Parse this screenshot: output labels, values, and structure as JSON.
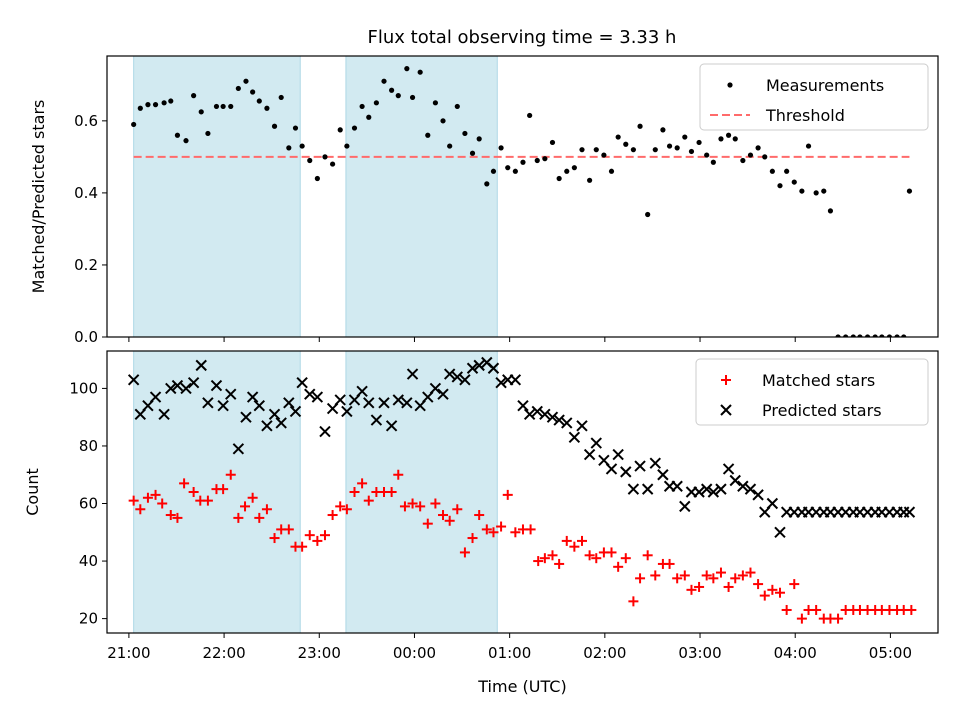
{
  "title": "Flux total observing time = 3.33 h",
  "colors": {
    "shade": "#add8e6",
    "threshold": "#ff6b6b",
    "matched": "#ff0000",
    "predicted": "#000000",
    "measurements": "#000000"
  },
  "chart_data": [
    {
      "panel": "top",
      "type": "scatter",
      "ylabel": "Matched/Predicted stars",
      "ylim": [
        0,
        0.78
      ],
      "yticks": [
        0.0,
        0.2,
        0.4,
        0.6
      ],
      "ytick_labels": [
        "0.0",
        "0.2",
        "0.4",
        "0.6"
      ],
      "xlim_hours": [
        20.77,
        29.5
      ],
      "shaded_intervals_hours": [
        [
          21.05,
          22.8
        ],
        [
          23.28,
          24.87
        ]
      ],
      "legend": [
        "Measurements",
        "Threshold"
      ],
      "legend_position": "upper right",
      "threshold": {
        "value": 0.5,
        "x_range_hours": [
          21.05,
          29.2
        ]
      },
      "series": [
        {
          "name": "Measurements",
          "x_hours": [
            21.05,
            21.12,
            21.2,
            21.28,
            21.37,
            21.44,
            21.51,
            21.6,
            21.68,
            21.76,
            21.83,
            21.92,
            21.99,
            22.07,
            22.15,
            22.23,
            22.3,
            22.37,
            22.45,
            22.53,
            22.6,
            22.68,
            22.75,
            22.82,
            22.9,
            22.98,
            23.06,
            23.14,
            23.22,
            23.29,
            23.37,
            23.45,
            23.52,
            23.6,
            23.68,
            23.76,
            23.83,
            23.92,
            23.98,
            24.06,
            24.14,
            24.22,
            24.3,
            24.37,
            24.45,
            24.53,
            24.61,
            24.68,
            24.76,
            24.83,
            24.91,
            24.98,
            25.06,
            25.14,
            25.21,
            25.29,
            25.37,
            25.45,
            25.52,
            25.6,
            25.68,
            25.76,
            25.84,
            25.91,
            25.99,
            26.07,
            26.14,
            26.22,
            26.3,
            26.37,
            26.45,
            26.53,
            26.61,
            26.68,
            26.76,
            26.84,
            26.91,
            26.99,
            27.07,
            27.14,
            27.22,
            27.3,
            27.37,
            27.45,
            27.53,
            27.61,
            27.68,
            27.76,
            27.84,
            27.91,
            27.99,
            28.07,
            28.14,
            28.22,
            28.3,
            28.37,
            28.45,
            28.53,
            28.61,
            28.68,
            28.76,
            28.84,
            28.91,
            28.99,
            29.07,
            29.14,
            29.2
          ],
          "y": [
            0.59,
            0.635,
            0.645,
            0.645,
            0.65,
            0.655,
            0.56,
            0.545,
            0.67,
            0.625,
            0.565,
            0.64,
            0.64,
            0.64,
            0.69,
            0.71,
            0.68,
            0.655,
            0.635,
            0.585,
            0.665,
            0.525,
            0.58,
            0.53,
            0.49,
            0.44,
            0.5,
            0.48,
            0.575,
            0.53,
            0.58,
            0.64,
            0.61,
            0.65,
            0.71,
            0.685,
            0.67,
            0.745,
            0.665,
            0.735,
            0.56,
            0.65,
            0.6,
            0.53,
            0.64,
            0.565,
            0.51,
            0.55,
            0.425,
            0.46,
            0.525,
            0.47,
            0.46,
            0.485,
            0.615,
            0.49,
            0.495,
            0.54,
            0.44,
            0.46,
            0.47,
            0.52,
            0.435,
            0.52,
            0.505,
            0.46,
            0.555,
            0.535,
            0.52,
            0.585,
            0.34,
            0.52,
            0.575,
            0.53,
            0.525,
            0.555,
            0.515,
            0.54,
            0.505,
            0.485,
            0.55,
            0.56,
            0.55,
            0.49,
            0.505,
            0.525,
            0.5,
            0.46,
            0.42,
            0.46,
            0.43,
            0.405,
            0.53,
            0.4,
            0.405,
            0.35,
            0.0,
            0.0,
            0.0,
            0.0,
            0.0,
            0.0,
            0.0,
            0.0,
            0.0,
            0.0,
            0.405
          ]
        }
      ]
    },
    {
      "panel": "bottom",
      "type": "scatter",
      "xlabel": "Time (UTC)",
      "ylabel": "Count",
      "ylim": [
        15,
        113
      ],
      "yticks": [
        20,
        40,
        60,
        80,
        100
      ],
      "ytick_labels": [
        "20",
        "40",
        "60",
        "80",
        "100"
      ],
      "xticks_hours": [
        21,
        22,
        23,
        24,
        25,
        26,
        27,
        28,
        29
      ],
      "xtick_labels": [
        "21:00",
        "22:00",
        "23:00",
        "00:00",
        "01:00",
        "02:00",
        "03:00",
        "04:00",
        "05:00"
      ],
      "xlim_hours": [
        20.77,
        29.5
      ],
      "shaded_intervals_hours": [
        [
          21.05,
          22.8
        ],
        [
          23.28,
          24.87
        ]
      ],
      "legend": [
        "Matched stars",
        "Predicted stars"
      ],
      "legend_position": "upper right",
      "series": [
        {
          "name": "Matched stars",
          "marker": "plus",
          "x_hours": [
            21.05,
            21.12,
            21.2,
            21.28,
            21.35,
            21.44,
            21.51,
            21.58,
            21.68,
            21.75,
            21.83,
            21.92,
            21.99,
            22.07,
            22.15,
            22.22,
            22.3,
            22.37,
            22.45,
            22.53,
            22.6,
            22.68,
            22.75,
            22.82,
            22.9,
            22.98,
            23.06,
            23.14,
            23.22,
            23.29,
            23.37,
            23.45,
            23.52,
            23.6,
            23.68,
            23.76,
            23.83,
            23.9,
            23.98,
            24.06,
            24.14,
            24.22,
            24.3,
            24.37,
            24.45,
            24.53,
            24.61,
            24.68,
            24.76,
            24.83,
            24.91,
            24.98,
            25.06,
            25.14,
            25.22,
            25.3,
            25.37,
            25.45,
            25.52,
            25.6,
            25.68,
            25.76,
            25.84,
            25.91,
            25.99,
            26.07,
            26.14,
            26.22,
            26.3,
            26.37,
            26.45,
            26.53,
            26.61,
            26.68,
            26.76,
            26.84,
            26.91,
            26.99,
            27.07,
            27.14,
            27.22,
            27.3,
            27.37,
            27.45,
            27.53,
            27.61,
            27.68,
            27.76,
            27.84,
            27.91,
            27.99,
            28.07,
            28.14,
            28.22,
            28.3,
            28.37,
            28.45,
            28.53,
            28.61,
            28.68,
            28.76,
            28.84,
            28.91,
            28.99,
            29.07,
            29.14,
            29.22
          ],
          "y": [
            61,
            58,
            62,
            63,
            60,
            56,
            55,
            67,
            64,
            61,
            61,
            65,
            65,
            70,
            55,
            59,
            62,
            55,
            58,
            48,
            51,
            51,
            45,
            45,
            49,
            47,
            49,
            56,
            59,
            58,
            64,
            67,
            61,
            64,
            64,
            64,
            70,
            59,
            60,
            59,
            53,
            60,
            56,
            54,
            58,
            43,
            48,
            56,
            51,
            50,
            52,
            63,
            50,
            51,
            51,
            40,
            41,
            42,
            39,
            47,
            45,
            47,
            42,
            41,
            43,
            43,
            38,
            41,
            26,
            34,
            42,
            35,
            39,
            39,
            34,
            35,
            30,
            31,
            35,
            34,
            36,
            31,
            34,
            35,
            36,
            32,
            28,
            30,
            29,
            23,
            32,
            20,
            23,
            23,
            20,
            20,
            20,
            23,
            23,
            23,
            23,
            23,
            23,
            23,
            23,
            23,
            23
          ]
        },
        {
          "name": "Predicted stars",
          "marker": "x",
          "x_hours": [
            21.05,
            21.12,
            21.2,
            21.28,
            21.37,
            21.44,
            21.51,
            21.6,
            21.68,
            21.76,
            21.83,
            21.92,
            21.99,
            22.07,
            22.15,
            22.23,
            22.3,
            22.37,
            22.45,
            22.53,
            22.6,
            22.68,
            22.75,
            22.82,
            22.9,
            22.98,
            23.06,
            23.14,
            23.22,
            23.29,
            23.37,
            23.45,
            23.52,
            23.6,
            23.68,
            23.76,
            23.83,
            23.92,
            23.98,
            24.06,
            24.14,
            24.22,
            24.3,
            24.37,
            24.45,
            24.53,
            24.61,
            24.68,
            24.76,
            24.83,
            24.91,
            24.98,
            25.06,
            25.14,
            25.21,
            25.29,
            25.37,
            25.45,
            25.52,
            25.6,
            25.68,
            25.76,
            25.84,
            25.91,
            25.99,
            26.07,
            26.14,
            26.22,
            26.3,
            26.37,
            26.45,
            26.53,
            26.61,
            26.68,
            26.76,
            26.84,
            26.91,
            26.99,
            27.07,
            27.14,
            27.22,
            27.3,
            27.37,
            27.45,
            27.53,
            27.61,
            27.68,
            27.76,
            27.84,
            27.91,
            27.99,
            28.07,
            28.14,
            28.22,
            28.3,
            28.37,
            28.45,
            28.53,
            28.61,
            28.68,
            28.76,
            28.84,
            28.91,
            28.99,
            29.07,
            29.14,
            29.2
          ],
          "y": [
            103,
            91,
            94,
            97,
            91,
            100,
            101,
            100,
            102,
            108,
            95,
            101,
            94,
            98,
            79,
            90,
            97,
            94,
            87,
            91,
            88,
            95,
            92,
            102,
            98,
            97,
            85,
            93,
            96,
            92,
            96,
            99,
            95,
            89,
            95,
            87,
            96,
            95,
            105,
            94,
            97,
            100,
            98,
            105,
            104,
            103,
            107,
            108,
            109,
            107,
            102,
            103,
            103,
            94,
            91,
            92,
            91,
            90,
            89,
            88,
            83,
            87,
            77,
            81,
            75,
            72,
            77,
            71,
            65,
            73,
            65,
            74,
            70,
            66,
            66,
            59,
            64,
            64,
            65,
            64,
            65,
            72,
            68,
            66,
            65,
            63,
            57,
            60,
            50,
            57,
            57,
            57,
            57,
            57,
            57,
            57,
            57,
            57,
            57,
            57,
            57,
            57,
            57,
            57,
            57,
            57,
            57
          ]
        }
      ]
    }
  ]
}
